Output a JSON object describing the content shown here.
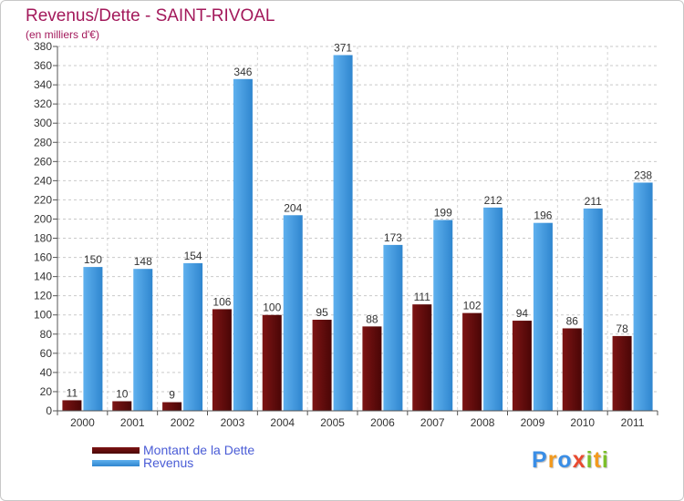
{
  "header": {
    "title": "Revenus/Dette - SAINT-RIVOAL",
    "subtitle": "(en milliers d'€)"
  },
  "chart_data": {
    "type": "bar",
    "title": "Revenus/Dette - SAINT-RIVOAL",
    "ylabel": "(en milliers d'€)",
    "xlabel": "",
    "categories": [
      "2000",
      "2001",
      "2002",
      "2003",
      "2004",
      "2005",
      "2006",
      "2007",
      "2008",
      "2009",
      "2010",
      "2011"
    ],
    "series": [
      {
        "name": "Montant de la Dette",
        "color": "#6b0b0b",
        "values": [
          11,
          10,
          9,
          106,
          100,
          95,
          88,
          111,
          102,
          94,
          86,
          78
        ]
      },
      {
        "name": "Revenus",
        "color": "#3d99e0",
        "values": [
          150,
          148,
          154,
          346,
          204,
          371,
          173,
          199,
          212,
          196,
          211,
          238
        ]
      }
    ],
    "ylim": [
      0,
      380
    ],
    "yticks": [
      0,
      20,
      40,
      60,
      80,
      100,
      120,
      140,
      160,
      180,
      200,
      220,
      240,
      260,
      280,
      300,
      320,
      340,
      360,
      380
    ],
    "grid": true,
    "legend_position": "bottom-left"
  },
  "legend": {
    "items": [
      {
        "label": "Montant de la Dette",
        "color": "#6b0b0b"
      },
      {
        "label": "Revenus",
        "color": "#3d99e0"
      }
    ]
  },
  "logo": {
    "letters": [
      "P",
      "r",
      "o",
      "x",
      "i",
      "t",
      "i"
    ]
  }
}
